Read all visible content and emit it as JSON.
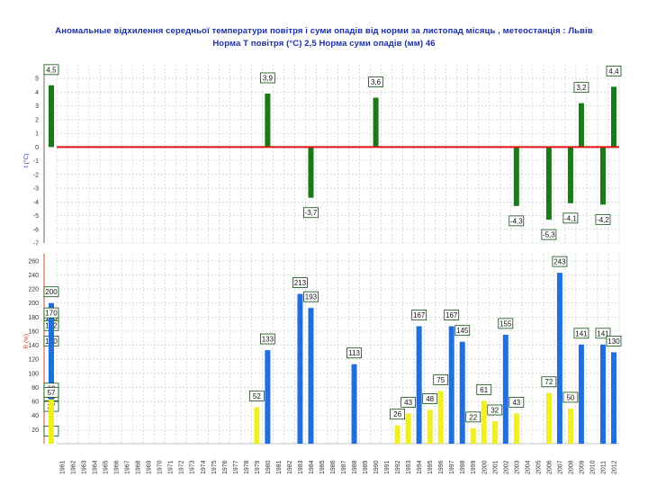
{
  "chart_title_line1": "Аномальные відхилення середньої температури повітря і суми опадів від норми за листопад місяць , метеостанція : Львів",
  "chart_title_line2": "Норма Т повітря (°С) 2,5     Норма суми опадів (мм) 46",
  "chart_data": [
    {
      "type": "bar",
      "ylabel": "t (°С)",
      "ylim": [
        -7,
        6
      ],
      "yticks": [
        5,
        4,
        3,
        2,
        1,
        0,
        -1,
        -2,
        -3,
        -4,
        -5,
        -6,
        -7
      ],
      "grid": true,
      "baseline": 0,
      "colors": {
        "bar": "#1a7a1a",
        "baseline": "#e01010"
      },
      "points": [
        {
          "x": "1980",
          "value": 3.9,
          "label": "3,9"
        },
        {
          "x": "1984",
          "value": -3.7,
          "label": "-3,7"
        },
        {
          "x": "1990",
          "value": 3.6,
          "label": "3,6"
        },
        {
          "x": "2003",
          "value": -4.3,
          "label": "-4,3"
        },
        {
          "x": "2006",
          "value": -5.3,
          "label": "-5,3"
        },
        {
          "x": "2008",
          "value": -4.1,
          "label": "-4,1"
        },
        {
          "x": "2009",
          "value": 3.2,
          "label": "3,2"
        },
        {
          "x": "2011",
          "value": -4.2,
          "label": "-4,2"
        },
        {
          "x": "2012",
          "value": 4.4,
          "label": "4,4"
        },
        {
          "x": "2020",
          "value": 4.5,
          "label": "4,5"
        }
      ]
    },
    {
      "type": "bar",
      "ylabel": "R (%)",
      "ylim": [
        0,
        270
      ],
      "yticks": [
        260,
        240,
        220,
        200,
        180,
        160,
        140,
        120,
        100,
        80,
        60,
        40,
        20
      ],
      "grid": true,
      "colors": {
        "above": "#1f6fe0",
        "below": "#f0f020"
      },
      "points": [
        {
          "x": "1979",
          "value": 52,
          "label": "52"
        },
        {
          "x": "1980",
          "value": 133,
          "label": "133"
        },
        {
          "x": "1983",
          "value": 213,
          "label": "213"
        },
        {
          "x": "1984",
          "value": 193,
          "label": "193"
        },
        {
          "x": "1988",
          "value": 113,
          "label": "113"
        },
        {
          "x": "1992",
          "value": 26,
          "label": "26"
        },
        {
          "x": "1993",
          "value": 43,
          "label": "43"
        },
        {
          "x": "1994",
          "value": 167,
          "label": "167"
        },
        {
          "x": "1995",
          "value": 48,
          "label": "48"
        },
        {
          "x": "1996",
          "value": 75,
          "label": "75"
        },
        {
          "x": "1997",
          "value": 167,
          "label": "167"
        },
        {
          "x": "1998",
          "value": 145,
          "label": "145"
        },
        {
          "x": "1999",
          "value": 22,
          "label": "22"
        },
        {
          "x": "2000",
          "value": 61,
          "label": "61"
        },
        {
          "x": "2001",
          "value": 32,
          "label": "32"
        },
        {
          "x": "2002",
          "value": 155,
          "label": "155"
        },
        {
          "x": "2003",
          "value": 43,
          "label": "43"
        },
        {
          "x": "2006",
          "value": 72,
          "label": "72"
        },
        {
          "x": "2007",
          "value": 243,
          "label": "243"
        },
        {
          "x": "2008",
          "value": 50,
          "label": "50"
        },
        {
          "x": "2009",
          "value": 141,
          "label": "141"
        },
        {
          "x": "2011",
          "value": 141,
          "label": "141"
        },
        {
          "x": "2012",
          "value": 130,
          "label": "130"
        },
        {
          "x": "2013",
          "value": 163,
          "label": "163"
        },
        {
          "x": "2014",
          "value": 37,
          "label": "37"
        },
        {
          "x": "2015",
          "value": 152,
          "label": "152"
        },
        {
          "x": "2016",
          "value": 52,
          "label": "52"
        },
        {
          "x": "2018",
          "value": 200,
          "label": "200"
        },
        {
          "x": "2019",
          "value": 59,
          "label": "59"
        },
        {
          "x": "2020",
          "value": 130,
          "label": "130"
        },
        {
          "x": "2021",
          "value": 170,
          "label": "170"
        },
        {
          "x": "2022",
          "value": 63,
          "label": "63"
        },
        {
          "x": "2024",
          "value": 2,
          "label": "2"
        },
        {
          "x": "2025",
          "value": 57,
          "label": "57"
        }
      ]
    }
  ],
  "x_axis": {
    "labels": [
      "1961",
      "1962",
      "1963",
      "1964",
      "1965",
      "1966",
      "1967",
      "1968",
      "1969",
      "1970",
      "1971",
      "1972",
      "1973",
      "1974",
      "1975",
      "1976",
      "1977",
      "1978",
      "1979",
      "1980",
      "1981",
      "1982",
      "1983",
      "1984",
      "1985",
      "1986",
      "1987",
      "1988",
      "1989",
      "1990",
      "1991",
      "1992",
      "1993",
      "1994",
      "1995",
      "1996",
      "1997",
      "1998",
      "1999",
      "2000",
      "2001",
      "2002",
      "2003",
      "2004",
      "2005",
      "2006",
      "2007",
      "2008",
      "2009",
      "2010",
      "2011",
      "2012"
    ]
  }
}
